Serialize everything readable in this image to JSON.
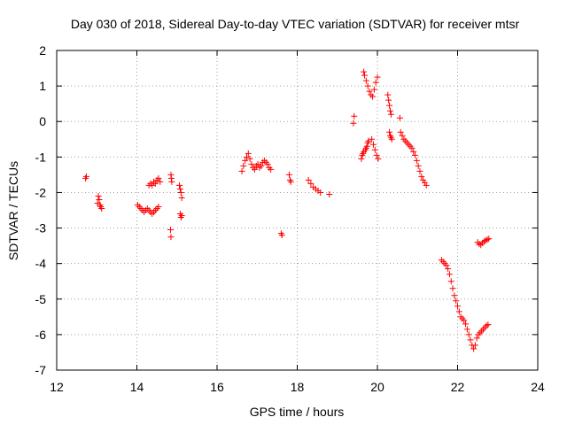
{
  "chart_data": {
    "type": "scatter",
    "title": "Day 030 of 2018, Sidereal Day-to-day VTEC variation (SDTVAR) for receiver mtsr",
    "xlabel": "GPS time / hours",
    "ylabel": "SDTVAR / TECUs",
    "xlim": [
      12,
      24
    ],
    "ylim": [
      -7,
      2
    ],
    "xticks": [
      12,
      14,
      16,
      18,
      20,
      22,
      24
    ],
    "yticks": [
      2,
      1,
      0,
      -1,
      -2,
      -3,
      -4,
      -5,
      -6,
      -7
    ],
    "xtick_labels": [
      "12",
      "14",
      "16",
      "18",
      "20",
      "22",
      "24"
    ],
    "ytick_labels": [
      "2",
      "1",
      "0",
      "-1",
      "-2",
      "-3",
      "-4",
      "-5",
      "-6",
      "-7"
    ],
    "grid": true,
    "marker": "plus",
    "color": "#ff0000",
    "series": [
      {
        "name": "SDTVAR",
        "x": [
          12.72,
          12.74,
          13.02,
          13.04,
          13.06,
          13.08,
          13.1,
          13.12,
          14.02,
          14.06,
          14.1,
          14.14,
          14.18,
          14.22,
          14.26,
          14.3,
          14.34,
          14.38,
          14.42,
          14.46,
          14.5,
          14.54,
          14.3,
          14.34,
          14.38,
          14.42,
          14.46,
          14.5,
          14.54,
          14.58,
          14.85,
          14.86,
          14.87,
          14.84,
          14.85,
          15.06,
          15.08,
          15.1,
          15.12,
          15.08,
          15.1,
          15.12,
          16.62,
          16.66,
          16.7,
          16.74,
          16.78,
          16.82,
          16.86,
          16.9,
          16.94,
          16.98,
          17.02,
          17.06,
          17.1,
          17.14,
          17.18,
          17.22,
          17.26,
          17.3,
          17.34,
          17.6,
          17.62,
          17.8,
          17.82,
          17.84,
          18.28,
          18.34,
          18.4,
          18.46,
          18.52,
          18.58,
          18.8,
          19.4,
          19.42,
          19.6,
          19.62,
          19.64,
          19.66,
          19.7,
          19.72,
          19.74,
          19.76,
          19.78,
          19.66,
          19.68,
          19.72,
          19.76,
          19.8,
          19.84,
          19.88,
          19.92,
          19.96,
          20.0,
          19.86,
          19.9,
          19.94,
          19.98,
          20.02,
          20.26,
          20.28,
          20.3,
          20.32,
          20.34,
          20.3,
          20.32,
          20.34,
          20.36,
          20.56,
          20.58,
          20.62,
          20.66,
          20.7,
          20.74,
          20.78,
          20.82,
          20.86,
          20.9,
          20.94,
          20.98,
          21.02,
          21.06,
          21.1,
          21.14,
          21.18,
          21.22,
          21.6,
          21.64,
          21.68,
          21.72,
          21.76,
          21.8,
          21.84,
          21.88,
          21.92,
          21.96,
          22.0,
          22.04,
          22.08,
          22.12,
          22.16,
          22.2,
          22.24,
          22.28,
          22.32,
          22.36,
          22.4,
          22.44,
          22.48,
          22.52,
          22.56,
          22.6,
          22.64,
          22.68,
          22.72,
          22.76,
          22.5,
          22.54,
          22.58,
          22.62,
          22.66,
          22.7,
          22.74,
          22.78
        ],
        "y": [
          -1.6,
          -1.55,
          -2.3,
          -2.1,
          -2.2,
          -2.35,
          -2.4,
          -2.45,
          -2.35,
          -2.4,
          -2.45,
          -2.5,
          -2.55,
          -2.5,
          -2.45,
          -2.5,
          -2.55,
          -2.6,
          -2.55,
          -2.5,
          -2.45,
          -2.4,
          -1.8,
          -1.75,
          -1.8,
          -1.7,
          -1.75,
          -1.65,
          -1.6,
          -1.7,
          -1.5,
          -1.6,
          -1.7,
          -3.05,
          -3.25,
          -1.8,
          -1.9,
          -2.0,
          -2.15,
          -2.6,
          -2.7,
          -2.65,
          -1.4,
          -1.25,
          -1.1,
          -1.0,
          -0.9,
          -1.05,
          -1.2,
          -1.3,
          -1.35,
          -1.25,
          -1.2,
          -1.3,
          -1.25,
          -1.15,
          -1.1,
          -1.15,
          -1.2,
          -1.3,
          -1.35,
          -3.15,
          -3.2,
          -1.5,
          -1.65,
          -1.7,
          -1.65,
          -1.75,
          -1.85,
          -1.9,
          -1.95,
          -2.0,
          -2.05,
          -0.05,
          0.15,
          -1.05,
          -0.95,
          -0.9,
          -0.85,
          -0.8,
          -0.75,
          -0.7,
          -0.6,
          -0.55,
          1.4,
          1.3,
          1.15,
          1.0,
          0.85,
          0.75,
          0.7,
          0.9,
          1.1,
          1.25,
          -0.5,
          -0.65,
          -0.8,
          -0.95,
          -1.05,
          0.75,
          0.6,
          0.45,
          0.3,
          0.2,
          -0.3,
          -0.4,
          -0.45,
          -0.5,
          0.1,
          -0.3,
          -0.4,
          -0.5,
          -0.55,
          -0.6,
          -0.65,
          -0.7,
          -0.75,
          -0.85,
          -0.95,
          -1.1,
          -1.25,
          -1.4,
          -1.55,
          -1.65,
          -1.72,
          -1.8,
          -3.9,
          -3.95,
          -4.0,
          -4.05,
          -4.15,
          -4.3,
          -4.5,
          -4.7,
          -4.9,
          -5.05,
          -5.2,
          -5.35,
          -5.5,
          -5.55,
          -5.6,
          -5.7,
          -5.85,
          -6.0,
          -6.15,
          -6.3,
          -6.4,
          -6.3,
          -6.1,
          -6.0,
          -5.95,
          -5.9,
          -5.85,
          -5.8,
          -5.75,
          -5.72,
          -3.4,
          -3.45,
          -3.48,
          -3.42,
          -3.38,
          -3.35,
          -3.32,
          -3.3
        ]
      }
    ]
  }
}
